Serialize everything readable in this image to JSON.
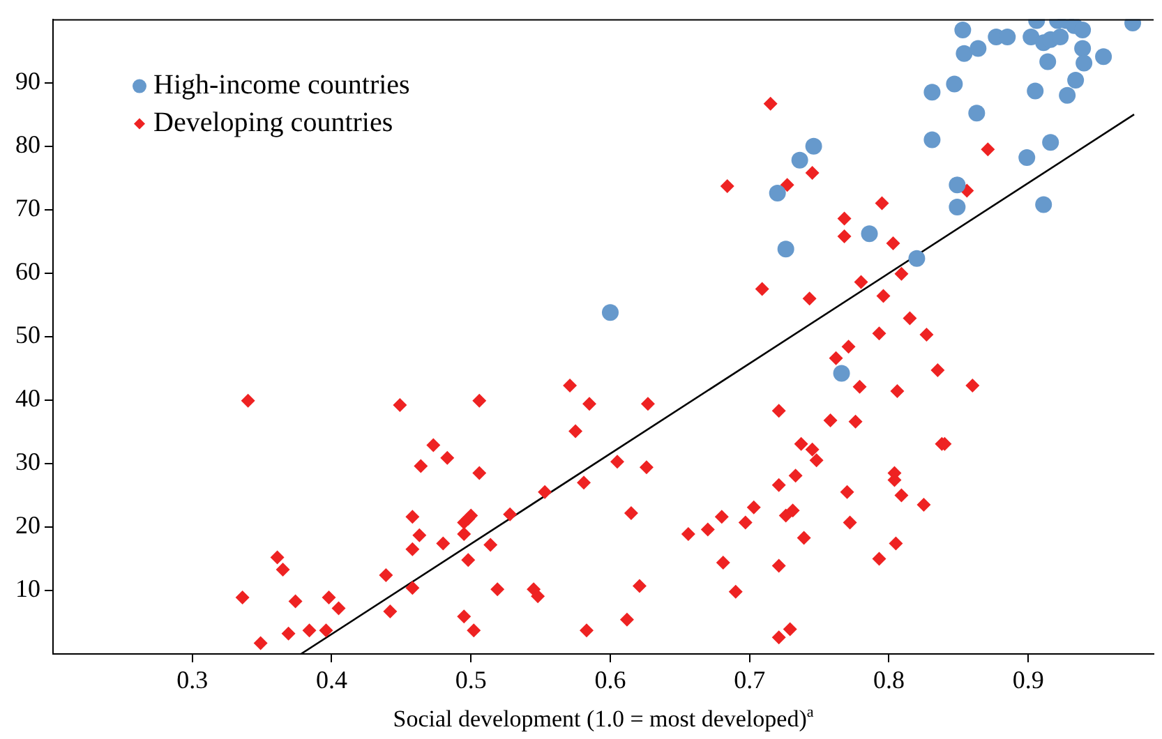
{
  "chart_data": {
    "type": "scatter",
    "xlabel": "Social development (1.0 = most developed)$^{a}$",
    "xlim": [
      0.2,
      0.99
    ],
    "xticks": [
      0.3,
      0.4,
      0.5,
      0.6,
      0.7,
      0.8,
      0.9
    ],
    "ylim": [
      0,
      100
    ],
    "yticks": [
      10,
      20,
      30,
      40,
      50,
      60,
      70,
      80,
      90
    ],
    "grid": false,
    "legend": "top left",
    "series": [
      {
        "name": "High-income countries",
        "color": "#6699cc",
        "marker": "circle",
        "x": [
          0.6,
          0.72,
          0.726,
          0.736,
          0.746,
          0.766,
          0.786,
          0.82,
          0.831,
          0.831,
          0.847,
          0.849,
          0.849,
          0.853,
          0.854,
          0.863,
          0.864,
          0.877,
          0.885,
          0.899,
          0.902,
          0.905,
          0.906,
          0.911,
          0.911,
          0.914,
          0.916,
          0.916,
          0.921,
          0.927,
          0.923,
          0.928,
          0.934,
          0.933,
          0.939,
          0.939,
          0.94,
          0.954,
          0.975
        ],
        "values": [
          53.8,
          72.6,
          63.8,
          77.8,
          80,
          44.2,
          66.2,
          62.3,
          81,
          88.5,
          89.8,
          73.9,
          70.4,
          98.3,
          94.6,
          85.2,
          95.4,
          97.2,
          97.2,
          78.2,
          97.2,
          88.7,
          99.8,
          70.8,
          96.3,
          93.3,
          80.6,
          96.8,
          99.8,
          99.8,
          97.2,
          88,
          90.4,
          99,
          98.3,
          95.4,
          93.1,
          94.1,
          99.4
        ]
      },
      {
        "name": "Developing countries",
        "color": "#ee2222",
        "marker": "diamond",
        "x": [
          0.34,
          0.336,
          0.349,
          0.361,
          0.365,
          0.374,
          0.369,
          0.384,
          0.396,
          0.398,
          0.405,
          0.449,
          0.439,
          0.442,
          0.458,
          0.458,
          0.463,
          0.458,
          0.473,
          0.464,
          0.483,
          0.48,
          0.506,
          0.506,
          0.495,
          0.498,
          0.5,
          0.495,
          0.498,
          0.495,
          0.502,
          0.514,
          0.519,
          0.528,
          0.553,
          0.545,
          0.548,
          0.571,
          0.585,
          0.575,
          0.581,
          0.583,
          0.605,
          0.615,
          0.621,
          0.612,
          0.627,
          0.626,
          0.656,
          0.67,
          0.68,
          0.681,
          0.69,
          0.697,
          0.703,
          0.721,
          0.721,
          0.721,
          0.721,
          0.729,
          0.726,
          0.731,
          0.733,
          0.737,
          0.745,
          0.748,
          0.739,
          0.793,
          0.771,
          0.762,
          0.827,
          0.835,
          0.86,
          0.779,
          0.806,
          0.758,
          0.776,
          0.838,
          0.84,
          0.804,
          0.804,
          0.77,
          0.809,
          0.825,
          0.772,
          0.805,
          0.793,
          0.715,
          0.684,
          0.727,
          0.745,
          0.768,
          0.768,
          0.709,
          0.743,
          0.78,
          0.871,
          0.856,
          0.795,
          0.803,
          0.809,
          0.796,
          0.815
        ],
        "values": [
          39.9,
          8.9,
          1.7,
          15.2,
          13.3,
          8.3,
          3.2,
          3.7,
          3.7,
          8.9,
          7.2,
          39.2,
          12.4,
          6.7,
          10.4,
          21.6,
          18.7,
          16.5,
          32.9,
          29.6,
          30.9,
          17.4,
          39.9,
          28.5,
          20.7,
          21.3,
          21.8,
          18.9,
          14.8,
          5.9,
          3.7,
          17.2,
          10.2,
          22,
          25.5,
          10.2,
          9.1,
          42.3,
          39.4,
          35.1,
          27,
          3.7,
          30.3,
          22.2,
          10.7,
          5.4,
          39.4,
          29.4,
          18.9,
          19.6,
          21.6,
          14.4,
          9.8,
          20.7,
          23.1,
          38.3,
          26.6,
          13.9,
          2.6,
          3.9,
          21.8,
          22.6,
          28.1,
          33.1,
          32.2,
          30.5,
          18.3,
          50.5,
          48.4,
          46.6,
          50.3,
          44.7,
          42.3,
          42.1,
          41.4,
          36.8,
          36.6,
          33.1,
          33.1,
          28.5,
          27.4,
          25.5,
          25,
          23.5,
          20.7,
          17.4,
          15,
          86.7,
          73.7,
          73.9,
          75.8,
          68.6,
          65.8,
          57.5,
          56,
          58.6,
          79.5,
          73,
          71,
          64.7,
          59.9,
          56.4,
          52.9
        ]
      },
      {
        "type": "line",
        "color": "#000000",
        "marker": "none",
        "x": [
          0.378,
          0.976
        ],
        "values": [
          0,
          85
        ]
      }
    ]
  }
}
